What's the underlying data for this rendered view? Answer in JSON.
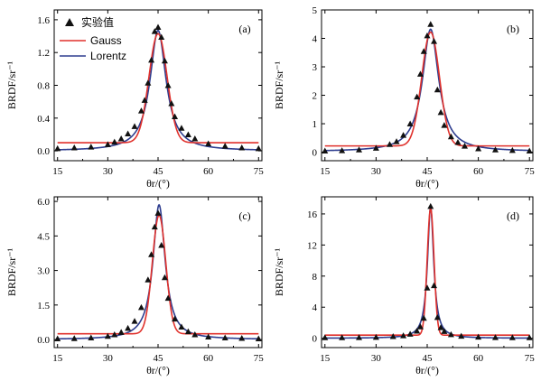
{
  "figure": {
    "legend": {
      "experimental": "实验值",
      "gauss": "Gauss",
      "lorentz": "Lorentz"
    },
    "colors": {
      "gauss": "#e0312c",
      "lorentz": "#2e3d8f",
      "marker": "#111111"
    }
  },
  "chart_data": [
    {
      "type": "line",
      "panel_label": "(a)",
      "xlabel": "θr/(°)",
      "ylabel": "BRDF/sr⁻¹",
      "xlim": [
        14,
        76
      ],
      "ylim": [
        -0.12,
        1.72
      ],
      "xticks": [
        "15",
        "30",
        "45",
        "60",
        "75"
      ],
      "yticks": [
        "0.0",
        "0.4",
        "0.8",
        "1.2",
        "1.6"
      ],
      "ytick_values": [
        0,
        0.4,
        0.8,
        1.2,
        1.6
      ],
      "grid": false,
      "legend_position": "top-left",
      "fit_params": {
        "gauss": {
          "baseline": 0.1,
          "amplitude": 1.33,
          "center": 45.0,
          "width": 2.7
        },
        "lorentz": {
          "baseline": 0.0,
          "amplitude": 1.47,
          "center": 45.0,
          "width": 2.9
        }
      },
      "series": [
        {
          "name": "实验值",
          "x": [
            15,
            20,
            25,
            30,
            32,
            34,
            36,
            38,
            40,
            41,
            42,
            43,
            44,
            45,
            46,
            47,
            48,
            49,
            50,
            52,
            54,
            56,
            60,
            65,
            70,
            75
          ],
          "y": [
            0.03,
            0.04,
            0.05,
            0.08,
            0.11,
            0.15,
            0.21,
            0.3,
            0.49,
            0.62,
            0.83,
            1.11,
            1.46,
            1.51,
            1.39,
            1.1,
            0.8,
            0.58,
            0.42,
            0.28,
            0.2,
            0.15,
            0.09,
            0.06,
            0.04,
            0.03
          ]
        },
        {
          "name": "Gauss"
        },
        {
          "name": "Lorentz"
        }
      ]
    },
    {
      "type": "line",
      "panel_label": "(b)",
      "xlabel": "θr/(°)",
      "ylabel": "BRDF/sr⁻¹",
      "xlim": [
        14,
        76
      ],
      "ylim": [
        -0.3,
        5.0
      ],
      "xticks": [
        "15",
        "30",
        "45",
        "60",
        "75"
      ],
      "yticks": [
        "0",
        "1",
        "2",
        "3",
        "4",
        "5"
      ],
      "ytick_values": [
        0,
        1,
        2,
        3,
        4,
        5
      ],
      "grid": false,
      "fit_params": {
        "gauss": {
          "baseline": 0.22,
          "amplitude": 4.0,
          "center": 46.0,
          "width": 2.6
        },
        "lorentz": {
          "baseline": 0.02,
          "amplitude": 4.3,
          "center": 46.0,
          "width": 2.9
        }
      },
      "series": [
        {
          "name": "实验值",
          "x": [
            15,
            20,
            25,
            30,
            34,
            36,
            38,
            40,
            42,
            43,
            44,
            45,
            46,
            47,
            48,
            49,
            50,
            52,
            54,
            56,
            60,
            65,
            70,
            75
          ],
          "y": [
            0.05,
            0.06,
            0.09,
            0.15,
            0.28,
            0.38,
            0.6,
            1.0,
            1.95,
            2.75,
            3.55,
            4.1,
            4.5,
            3.9,
            2.2,
            1.4,
            0.95,
            0.55,
            0.35,
            0.22,
            0.13,
            0.09,
            0.07,
            0.05
          ]
        }
      ]
    },
    {
      "type": "line",
      "panel_label": "(c)",
      "xlabel": "θr/(°)",
      "ylabel": "BRDF/sr⁻¹",
      "xlim": [
        14,
        76
      ],
      "ylim": [
        -0.35,
        6.2
      ],
      "xticks": [
        "15",
        "30",
        "45",
        "60",
        "75"
      ],
      "yticks": [
        "0.0",
        "1.5",
        "3.0",
        "4.5",
        "6.0"
      ],
      "ytick_values": [
        0,
        1.5,
        3.0,
        4.5,
        6.0
      ],
      "grid": false,
      "fit_params": {
        "gauss": {
          "baseline": 0.25,
          "amplitude": 5.15,
          "center": 45.3,
          "width": 2.0
        },
        "lorentz": {
          "baseline": 0.0,
          "amplitude": 5.85,
          "center": 45.3,
          "width": 2.2
        }
      },
      "series": [
        {
          "name": "实验值",
          "x": [
            15,
            20,
            25,
            30,
            32,
            34,
            36,
            38,
            40,
            42,
            43,
            44,
            45,
            46,
            47,
            48,
            50,
            52,
            54,
            56,
            60,
            65,
            70,
            75
          ],
          "y": [
            0.04,
            0.05,
            0.08,
            0.15,
            0.22,
            0.32,
            0.5,
            0.8,
            1.4,
            2.6,
            3.7,
            4.9,
            5.5,
            4.1,
            2.7,
            1.8,
            0.9,
            0.55,
            0.35,
            0.22,
            0.12,
            0.08,
            0.06,
            0.04
          ]
        }
      ]
    },
    {
      "type": "line",
      "panel_label": "(d)",
      "xlabel": "θr/(°)",
      "ylabel": "BRDF/sr⁻¹",
      "xlim": [
        14,
        76
      ],
      "ylim": [
        -1.2,
        18.2
      ],
      "xticks": [
        "15",
        "30",
        "45",
        "60",
        "75"
      ],
      "yticks": [
        "0",
        "4",
        "8",
        "12",
        "16"
      ],
      "ytick_values": [
        0,
        4,
        8,
        12,
        16
      ],
      "grid": false,
      "fit_params": {
        "gauss": {
          "baseline": 0.4,
          "amplitude": 16.3,
          "center": 46.0,
          "width": 1.0
        },
        "lorentz": {
          "baseline": 0.0,
          "amplitude": 16.9,
          "center": 46.0,
          "width": 1.1
        }
      },
      "series": [
        {
          "name": "实验值",
          "x": [
            15,
            20,
            25,
            30,
            35,
            38,
            40,
            42,
            43,
            44,
            45,
            46,
            47,
            48,
            49,
            50,
            52,
            55,
            60,
            65,
            70,
            75
          ],
          "y": [
            0.1,
            0.1,
            0.12,
            0.15,
            0.25,
            0.35,
            0.55,
            0.95,
            1.5,
            2.6,
            6.5,
            17.0,
            6.8,
            2.7,
            1.4,
            0.9,
            0.5,
            0.3,
            0.18,
            0.12,
            0.1,
            0.1
          ]
        }
      ]
    }
  ]
}
